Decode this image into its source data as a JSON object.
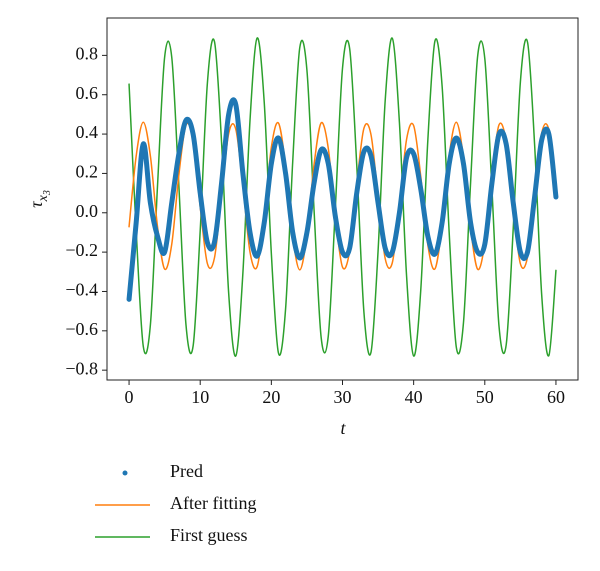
{
  "chart_data": {
    "type": "line",
    "xlabel": "t",
    "ylabel": {
      "base": "τ",
      "sub": "x",
      "subsub": "3"
    },
    "xlim": [
      -3.1,
      63.1
    ],
    "ylim": [
      -0.85,
      0.99
    ],
    "xticks": [
      0,
      10,
      20,
      30,
      40,
      50,
      60
    ],
    "yticks": [
      {
        "value": -0.8,
        "label": "−0.8"
      },
      {
        "value": -0.6,
        "label": "−0.6"
      },
      {
        "value": -0.4,
        "label": "−0.4"
      },
      {
        "value": -0.2,
        "label": "−0.2"
      },
      {
        "value": 0,
        "label": "0.0"
      },
      {
        "value": 0.2,
        "label": "0.2"
      },
      {
        "value": 0.4,
        "label": "0.4"
      },
      {
        "value": 0.6,
        "label": "0.6"
      },
      {
        "value": 0.8,
        "label": "0.8"
      }
    ],
    "legend": "bottom",
    "x": [
      0,
      1,
      2,
      3,
      4,
      5,
      6,
      7,
      8,
      9,
      10,
      11,
      12,
      13,
      14,
      15,
      16,
      17,
      18,
      19,
      20,
      21,
      22,
      23,
      24,
      25,
      26,
      27,
      28,
      29,
      30,
      31,
      32,
      33,
      34,
      35,
      36,
      37,
      38,
      39,
      40,
      41,
      42,
      43,
      44,
      45,
      46,
      47,
      48,
      49,
      50,
      51,
      52,
      53,
      54,
      55,
      56,
      57,
      58,
      59,
      60
    ],
    "series": [
      {
        "name": "Pred",
        "color": "#1f77b4",
        "marker": "dot",
        "values": [
          -0.44,
          -0.05,
          0.35,
          0.05,
          -0.12,
          -0.2,
          0.05,
          0.3,
          0.47,
          0.4,
          0.1,
          -0.15,
          -0.15,
          0.15,
          0.5,
          0.55,
          0.2,
          -0.1,
          -0.22,
          -0.05,
          0.25,
          0.38,
          0.2,
          -0.1,
          -0.23,
          -0.1,
          0.15,
          0.32,
          0.25,
          -0.02,
          -0.2,
          -0.18,
          0.1,
          0.31,
          0.29,
          0.05,
          -0.18,
          -0.2,
          0.0,
          0.28,
          0.3,
          0.12,
          -0.12,
          -0.21,
          -0.05,
          0.25,
          0.38,
          0.25,
          -0.05,
          -0.2,
          -0.16,
          0.15,
          0.4,
          0.35,
          0.05,
          -0.2,
          -0.2,
          0.08,
          0.37,
          0.4,
          0.08
        ]
      },
      {
        "name": "After fitting",
        "color": "#ff7f0e",
        "marker": "line",
        "values": [
          -0.071,
          0.288,
          0.46,
          0.288,
          -0.071,
          -0.286,
          -0.16,
          0.192,
          0.445,
          0.368,
          0.03,
          -0.257,
          -0.23,
          0.087,
          0.402,
          0.425,
          0.136,
          -0.2,
          -0.274,
          -0.018,
          0.333,
          0.456,
          0.238,
          -0.121,
          -0.29,
          -0.115,
          0.244,
          0.457,
          0.328,
          -0.025,
          -0.276,
          -0.196,
          0.143,
          0.428,
          0.398,
          0.08,
          -0.233,
          -0.254,
          0.037,
          0.372,
          0.443,
          0.185,
          -0.165,
          -0.285,
          -0.065,
          0.293,
          0.46,
          0.282,
          -0.077,
          -0.287,
          -0.155,
          0.198,
          0.447,
          0.363,
          0.024,
          -0.259,
          -0.226,
          0.093,
          0.405,
          0.423,
          0.13
        ]
      },
      {
        "name": "First guess",
        "color": "#2ca02c",
        "marker": "line",
        "values": [
          0.654,
          -0.091,
          -0.679,
          -0.569,
          0.137,
          0.791,
          0.791,
          0.138,
          -0.569,
          -0.678,
          -0.091,
          0.654,
          0.871,
          0.36,
          -0.408,
          -0.728,
          -0.306,
          0.47,
          0.888,
          0.561,
          -0.208,
          -0.713,
          -0.489,
          0.258,
          0.841,
          0.725,
          0.015,
          -0.634,
          -0.627,
          0.03,
          0.734,
          0.836,
          0.244,
          -0.5,
          -0.71,
          -0.194,
          0.57,
          0.887,
          0.459,
          -0.318,
          -0.728,
          -0.393,
          0.373,
          0.874,
          0.644,
          -0.105,
          -0.684,
          -0.56,
          0.151,
          0.798,
          0.784,
          0.123,
          -0.578,
          -0.673,
          -0.077,
          0.664,
          0.868,
          0.347,
          -0.419,
          -0.726,
          -0.293
        ]
      }
    ]
  }
}
